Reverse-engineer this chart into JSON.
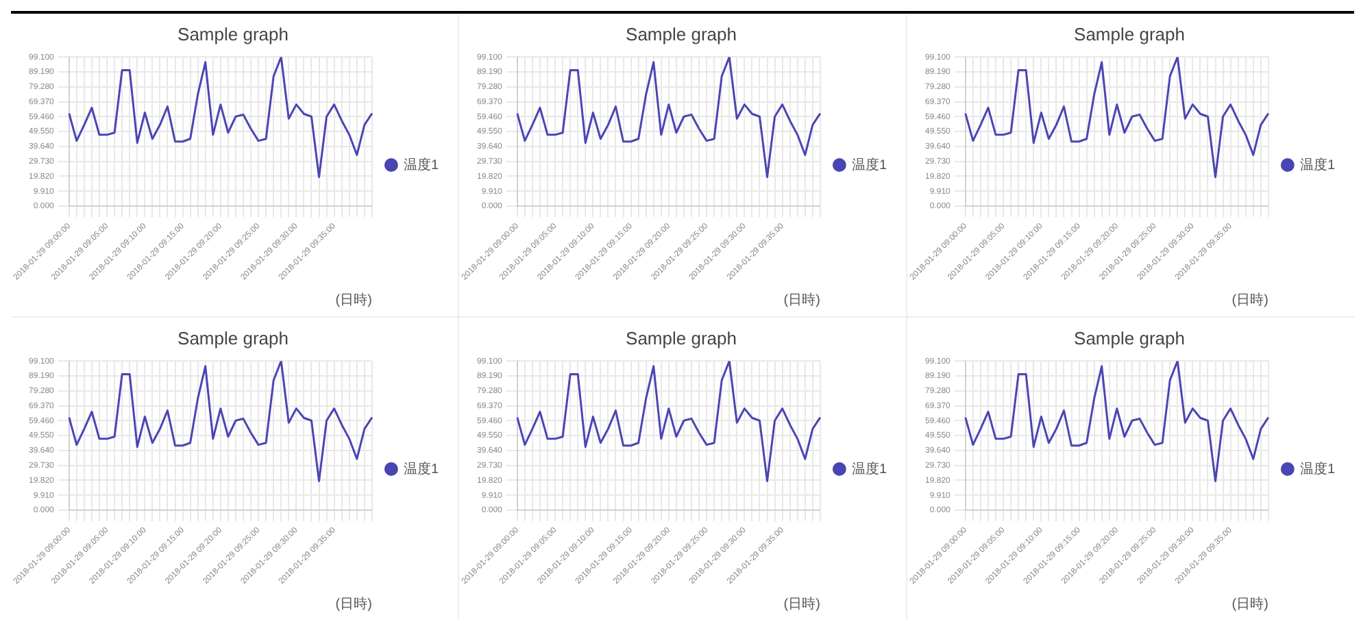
{
  "chart_data": [
    {
      "type": "line",
      "title": "Sample graph",
      "xlabel": "(日時)",
      "legend": "right",
      "grid": true,
      "marker": "none",
      "line_style": "solid",
      "categories": [
        "2018-01-29 09:00:00",
        null,
        null,
        null,
        null,
        "2018-01-29 09:05:00",
        null,
        null,
        null,
        null,
        "2018-01-29 09:10:00",
        null,
        null,
        null,
        null,
        "2018-01-29 09:15:00",
        null,
        null,
        null,
        null,
        "2018-01-29 09:20:00",
        null,
        null,
        null,
        null,
        "2018-01-29 09:25:00",
        null,
        null,
        null,
        null,
        "2018-01-29 09:30:00",
        null,
        null,
        null,
        null,
        "2018-01-29 09:35:00",
        null,
        null,
        null,
        null,
        null
      ],
      "ylim": [
        0,
        99.1
      ],
      "yticks": [
        {
          "value": 0,
          "label": "0.000"
        },
        {
          "value": 9.91,
          "label": "9.910"
        },
        {
          "value": 19.82,
          "label": "19.820"
        },
        {
          "value": 29.73,
          "label": "29.730"
        },
        {
          "value": 39.64,
          "label": "39.640"
        },
        {
          "value": 49.55,
          "label": "49.550"
        },
        {
          "value": 59.46,
          "label": "59.460"
        },
        {
          "value": 69.37,
          "label": "69.370"
        },
        {
          "value": 79.28,
          "label": "79.280"
        },
        {
          "value": 89.19,
          "label": "89.190"
        },
        {
          "value": 99.1,
          "label": "99.100"
        }
      ],
      "series": [
        {
          "name": "温度1",
          "color": "#4a45b5",
          "values": [
            61.6,
            43.4,
            54,
            65.4,
            47.4,
            47.4,
            48.8,
            90.3,
            90.3,
            42,
            62.1,
            44.7,
            54,
            66.2,
            42.9,
            42.9,
            44.7,
            74.2,
            95.6,
            47.4,
            67.5,
            48.8,
            59.5,
            60.8,
            51.4,
            43.4,
            44.7,
            86.3,
            99.1,
            58.1,
            67.5,
            61.3,
            59.5,
            19.3,
            59.5,
            67.5,
            56.8,
            47.4,
            34,
            54,
            61.6
          ]
        }
      ]
    },
    {
      "type": "line",
      "title": "Sample graph",
      "xlabel": "(日時)",
      "legend": "right",
      "grid": true,
      "marker": "none",
      "line_style": "solid",
      "categories": [
        "2018-01-29 09:00:00",
        null,
        null,
        null,
        null,
        "2018-01-29 09:05:00",
        null,
        null,
        null,
        null,
        "2018-01-29 09:10:00",
        null,
        null,
        null,
        null,
        "2018-01-29 09:15:00",
        null,
        null,
        null,
        null,
        "2018-01-29 09:20:00",
        null,
        null,
        null,
        null,
        "2018-01-29 09:25:00",
        null,
        null,
        null,
        null,
        "2018-01-29 09:30:00",
        null,
        null,
        null,
        null,
        "2018-01-29 09:35:00",
        null,
        null,
        null,
        null,
        null
      ],
      "ylim": [
        0,
        99.1
      ],
      "yticks": [
        {
          "value": 0,
          "label": "0.000"
        },
        {
          "value": 9.91,
          "label": "9.910"
        },
        {
          "value": 19.82,
          "label": "19.820"
        },
        {
          "value": 29.73,
          "label": "29.730"
        },
        {
          "value": 39.64,
          "label": "39.640"
        },
        {
          "value": 49.55,
          "label": "49.550"
        },
        {
          "value": 59.46,
          "label": "59.460"
        },
        {
          "value": 69.37,
          "label": "69.370"
        },
        {
          "value": 79.28,
          "label": "79.280"
        },
        {
          "value": 89.19,
          "label": "89.190"
        },
        {
          "value": 99.1,
          "label": "99.100"
        }
      ],
      "series": [
        {
          "name": "温度1",
          "color": "#4a45b5",
          "values": [
            61.6,
            43.4,
            54,
            65.4,
            47.4,
            47.4,
            48.8,
            90.3,
            90.3,
            42,
            62.1,
            44.7,
            54,
            66.2,
            42.9,
            42.9,
            44.7,
            74.2,
            95.6,
            47.4,
            67.5,
            48.8,
            59.5,
            60.8,
            51.4,
            43.4,
            44.7,
            86.3,
            99.1,
            58.1,
            67.5,
            61.3,
            59.5,
            19.3,
            59.5,
            67.5,
            56.8,
            47.4,
            34,
            54,
            61.6
          ]
        }
      ]
    },
    {
      "type": "line",
      "title": "Sample graph",
      "xlabel": "(日時)",
      "legend": "right",
      "grid": true,
      "marker": "none",
      "line_style": "solid",
      "categories": [
        "2018-01-29 09:00:00",
        null,
        null,
        null,
        null,
        "2018-01-29 09:05:00",
        null,
        null,
        null,
        null,
        "2018-01-29 09:10:00",
        null,
        null,
        null,
        null,
        "2018-01-29 09:15:00",
        null,
        null,
        null,
        null,
        "2018-01-29 09:20:00",
        null,
        null,
        null,
        null,
        "2018-01-29 09:25:00",
        null,
        null,
        null,
        null,
        "2018-01-29 09:30:00",
        null,
        null,
        null,
        null,
        "2018-01-29 09:35:00",
        null,
        null,
        null,
        null,
        null
      ],
      "ylim": [
        0,
        99.1
      ],
      "yticks": [
        {
          "value": 0,
          "label": "0.000"
        },
        {
          "value": 9.91,
          "label": "9.910"
        },
        {
          "value": 19.82,
          "label": "19.820"
        },
        {
          "value": 29.73,
          "label": "29.730"
        },
        {
          "value": 39.64,
          "label": "39.640"
        },
        {
          "value": 49.55,
          "label": "49.550"
        },
        {
          "value": 59.46,
          "label": "59.460"
        },
        {
          "value": 69.37,
          "label": "69.370"
        },
        {
          "value": 79.28,
          "label": "79.280"
        },
        {
          "value": 89.19,
          "label": "89.190"
        },
        {
          "value": 99.1,
          "label": "99.100"
        }
      ],
      "series": [
        {
          "name": "温度1",
          "color": "#4a45b5",
          "values": [
            61.6,
            43.4,
            54,
            65.4,
            47.4,
            47.4,
            48.8,
            90.3,
            90.3,
            42,
            62.1,
            44.7,
            54,
            66.2,
            42.9,
            42.9,
            44.7,
            74.2,
            95.6,
            47.4,
            67.5,
            48.8,
            59.5,
            60.8,
            51.4,
            43.4,
            44.7,
            86.3,
            99.1,
            58.1,
            67.5,
            61.3,
            59.5,
            19.3,
            59.5,
            67.5,
            56.8,
            47.4,
            34,
            54,
            61.6
          ]
        }
      ]
    },
    {
      "type": "line",
      "title": "Sample graph",
      "xlabel": "(日時)",
      "legend": "right",
      "grid": true,
      "marker": "none",
      "line_style": "solid",
      "categories": [
        "2018-01-29 09:00:00",
        null,
        null,
        null,
        null,
        "2018-01-29 09:05:00",
        null,
        null,
        null,
        null,
        "2018-01-29 09:10:00",
        null,
        null,
        null,
        null,
        "2018-01-29 09:15:00",
        null,
        null,
        null,
        null,
        "2018-01-29 09:20:00",
        null,
        null,
        null,
        null,
        "2018-01-29 09:25:00",
        null,
        null,
        null,
        null,
        "2018-01-29 09:30:00",
        null,
        null,
        null,
        null,
        "2018-01-29 09:35:00",
        null,
        null,
        null,
        null,
        null
      ],
      "ylim": [
        0,
        99.1
      ],
      "yticks": [
        {
          "value": 0,
          "label": "0.000"
        },
        {
          "value": 9.91,
          "label": "9.910"
        },
        {
          "value": 19.82,
          "label": "19.820"
        },
        {
          "value": 29.73,
          "label": "29.730"
        },
        {
          "value": 39.64,
          "label": "39.640"
        },
        {
          "value": 49.55,
          "label": "49.550"
        },
        {
          "value": 59.46,
          "label": "59.460"
        },
        {
          "value": 69.37,
          "label": "69.370"
        },
        {
          "value": 79.28,
          "label": "79.280"
        },
        {
          "value": 89.19,
          "label": "89.190"
        },
        {
          "value": 99.1,
          "label": "99.100"
        }
      ],
      "series": [
        {
          "name": "温度1",
          "color": "#4a45b5",
          "values": [
            61.6,
            43.4,
            54,
            65.4,
            47.4,
            47.4,
            48.8,
            90.3,
            90.3,
            42,
            62.1,
            44.7,
            54,
            66.2,
            42.9,
            42.9,
            44.7,
            74.2,
            95.6,
            47.4,
            67.5,
            48.8,
            59.5,
            60.8,
            51.4,
            43.4,
            44.7,
            86.3,
            99.1,
            58.1,
            67.5,
            61.3,
            59.5,
            19.3,
            59.5,
            67.5,
            56.8,
            47.4,
            34,
            54,
            61.6
          ]
        }
      ]
    },
    {
      "type": "line",
      "title": "Sample graph",
      "xlabel": "(日時)",
      "legend": "right",
      "grid": true,
      "marker": "none",
      "line_style": "solid",
      "categories": [
        "2018-01-29 09:00:00",
        null,
        null,
        null,
        null,
        "2018-01-29 09:05:00",
        null,
        null,
        null,
        null,
        "2018-01-29 09:10:00",
        null,
        null,
        null,
        null,
        "2018-01-29 09:15:00",
        null,
        null,
        null,
        null,
        "2018-01-29 09:20:00",
        null,
        null,
        null,
        null,
        "2018-01-29 09:25:00",
        null,
        null,
        null,
        null,
        "2018-01-29 09:30:00",
        null,
        null,
        null,
        null,
        "2018-01-29 09:35:00",
        null,
        null,
        null,
        null,
        null
      ],
      "ylim": [
        0,
        99.1
      ],
      "yticks": [
        {
          "value": 0,
          "label": "0.000"
        },
        {
          "value": 9.91,
          "label": "9.910"
        },
        {
          "value": 19.82,
          "label": "19.820"
        },
        {
          "value": 29.73,
          "label": "29.730"
        },
        {
          "value": 39.64,
          "label": "39.640"
        },
        {
          "value": 49.55,
          "label": "49.550"
        },
        {
          "value": 59.46,
          "label": "59.460"
        },
        {
          "value": 69.37,
          "label": "69.370"
        },
        {
          "value": 79.28,
          "label": "79.280"
        },
        {
          "value": 89.19,
          "label": "89.190"
        },
        {
          "value": 99.1,
          "label": "99.100"
        }
      ],
      "series": [
        {
          "name": "温度1",
          "color": "#4a45b5",
          "values": [
            61.6,
            43.4,
            54,
            65.4,
            47.4,
            47.4,
            48.8,
            90.3,
            90.3,
            42,
            62.1,
            44.7,
            54,
            66.2,
            42.9,
            42.9,
            44.7,
            74.2,
            95.6,
            47.4,
            67.5,
            48.8,
            59.5,
            60.8,
            51.4,
            43.4,
            44.7,
            86.3,
            99.1,
            58.1,
            67.5,
            61.3,
            59.5,
            19.3,
            59.5,
            67.5,
            56.8,
            47.4,
            34,
            54,
            61.6
          ]
        }
      ]
    },
    {
      "type": "line",
      "title": "Sample graph",
      "xlabel": "(日時)",
      "legend": "right",
      "grid": true,
      "marker": "none",
      "line_style": "solid",
      "categories": [
        "2018-01-29 09:00:00",
        null,
        null,
        null,
        null,
        "2018-01-29 09:05:00",
        null,
        null,
        null,
        null,
        "2018-01-29 09:10:00",
        null,
        null,
        null,
        null,
        "2018-01-29 09:15:00",
        null,
        null,
        null,
        null,
        "2018-01-29 09:20:00",
        null,
        null,
        null,
        null,
        "2018-01-29 09:25:00",
        null,
        null,
        null,
        null,
        "2018-01-29 09:30:00",
        null,
        null,
        null,
        null,
        "2018-01-29 09:35:00",
        null,
        null,
        null,
        null,
        null
      ],
      "ylim": [
        0,
        99.1
      ],
      "yticks": [
        {
          "value": 0,
          "label": "0.000"
        },
        {
          "value": 9.91,
          "label": "9.910"
        },
        {
          "value": 19.82,
          "label": "19.820"
        },
        {
          "value": 29.73,
          "label": "29.730"
        },
        {
          "value": 39.64,
          "label": "39.640"
        },
        {
          "value": 49.55,
          "label": "49.550"
        },
        {
          "value": 59.46,
          "label": "59.460"
        },
        {
          "value": 69.37,
          "label": "69.370"
        },
        {
          "value": 79.28,
          "label": "79.280"
        },
        {
          "value": 89.19,
          "label": "89.190"
        },
        {
          "value": 99.1,
          "label": "99.100"
        }
      ],
      "series": [
        {
          "name": "温度1",
          "color": "#4a45b5",
          "values": [
            61.6,
            43.4,
            54,
            65.4,
            47.4,
            47.4,
            48.8,
            90.3,
            90.3,
            42,
            62.1,
            44.7,
            54,
            66.2,
            42.9,
            42.9,
            44.7,
            74.2,
            95.6,
            47.4,
            67.5,
            48.8,
            59.5,
            60.8,
            51.4,
            43.4,
            44.7,
            86.3,
            99.1,
            58.1,
            67.5,
            61.3,
            59.5,
            19.3,
            59.5,
            67.5,
            56.8,
            47.4,
            34,
            54,
            61.6
          ]
        }
      ]
    }
  ]
}
